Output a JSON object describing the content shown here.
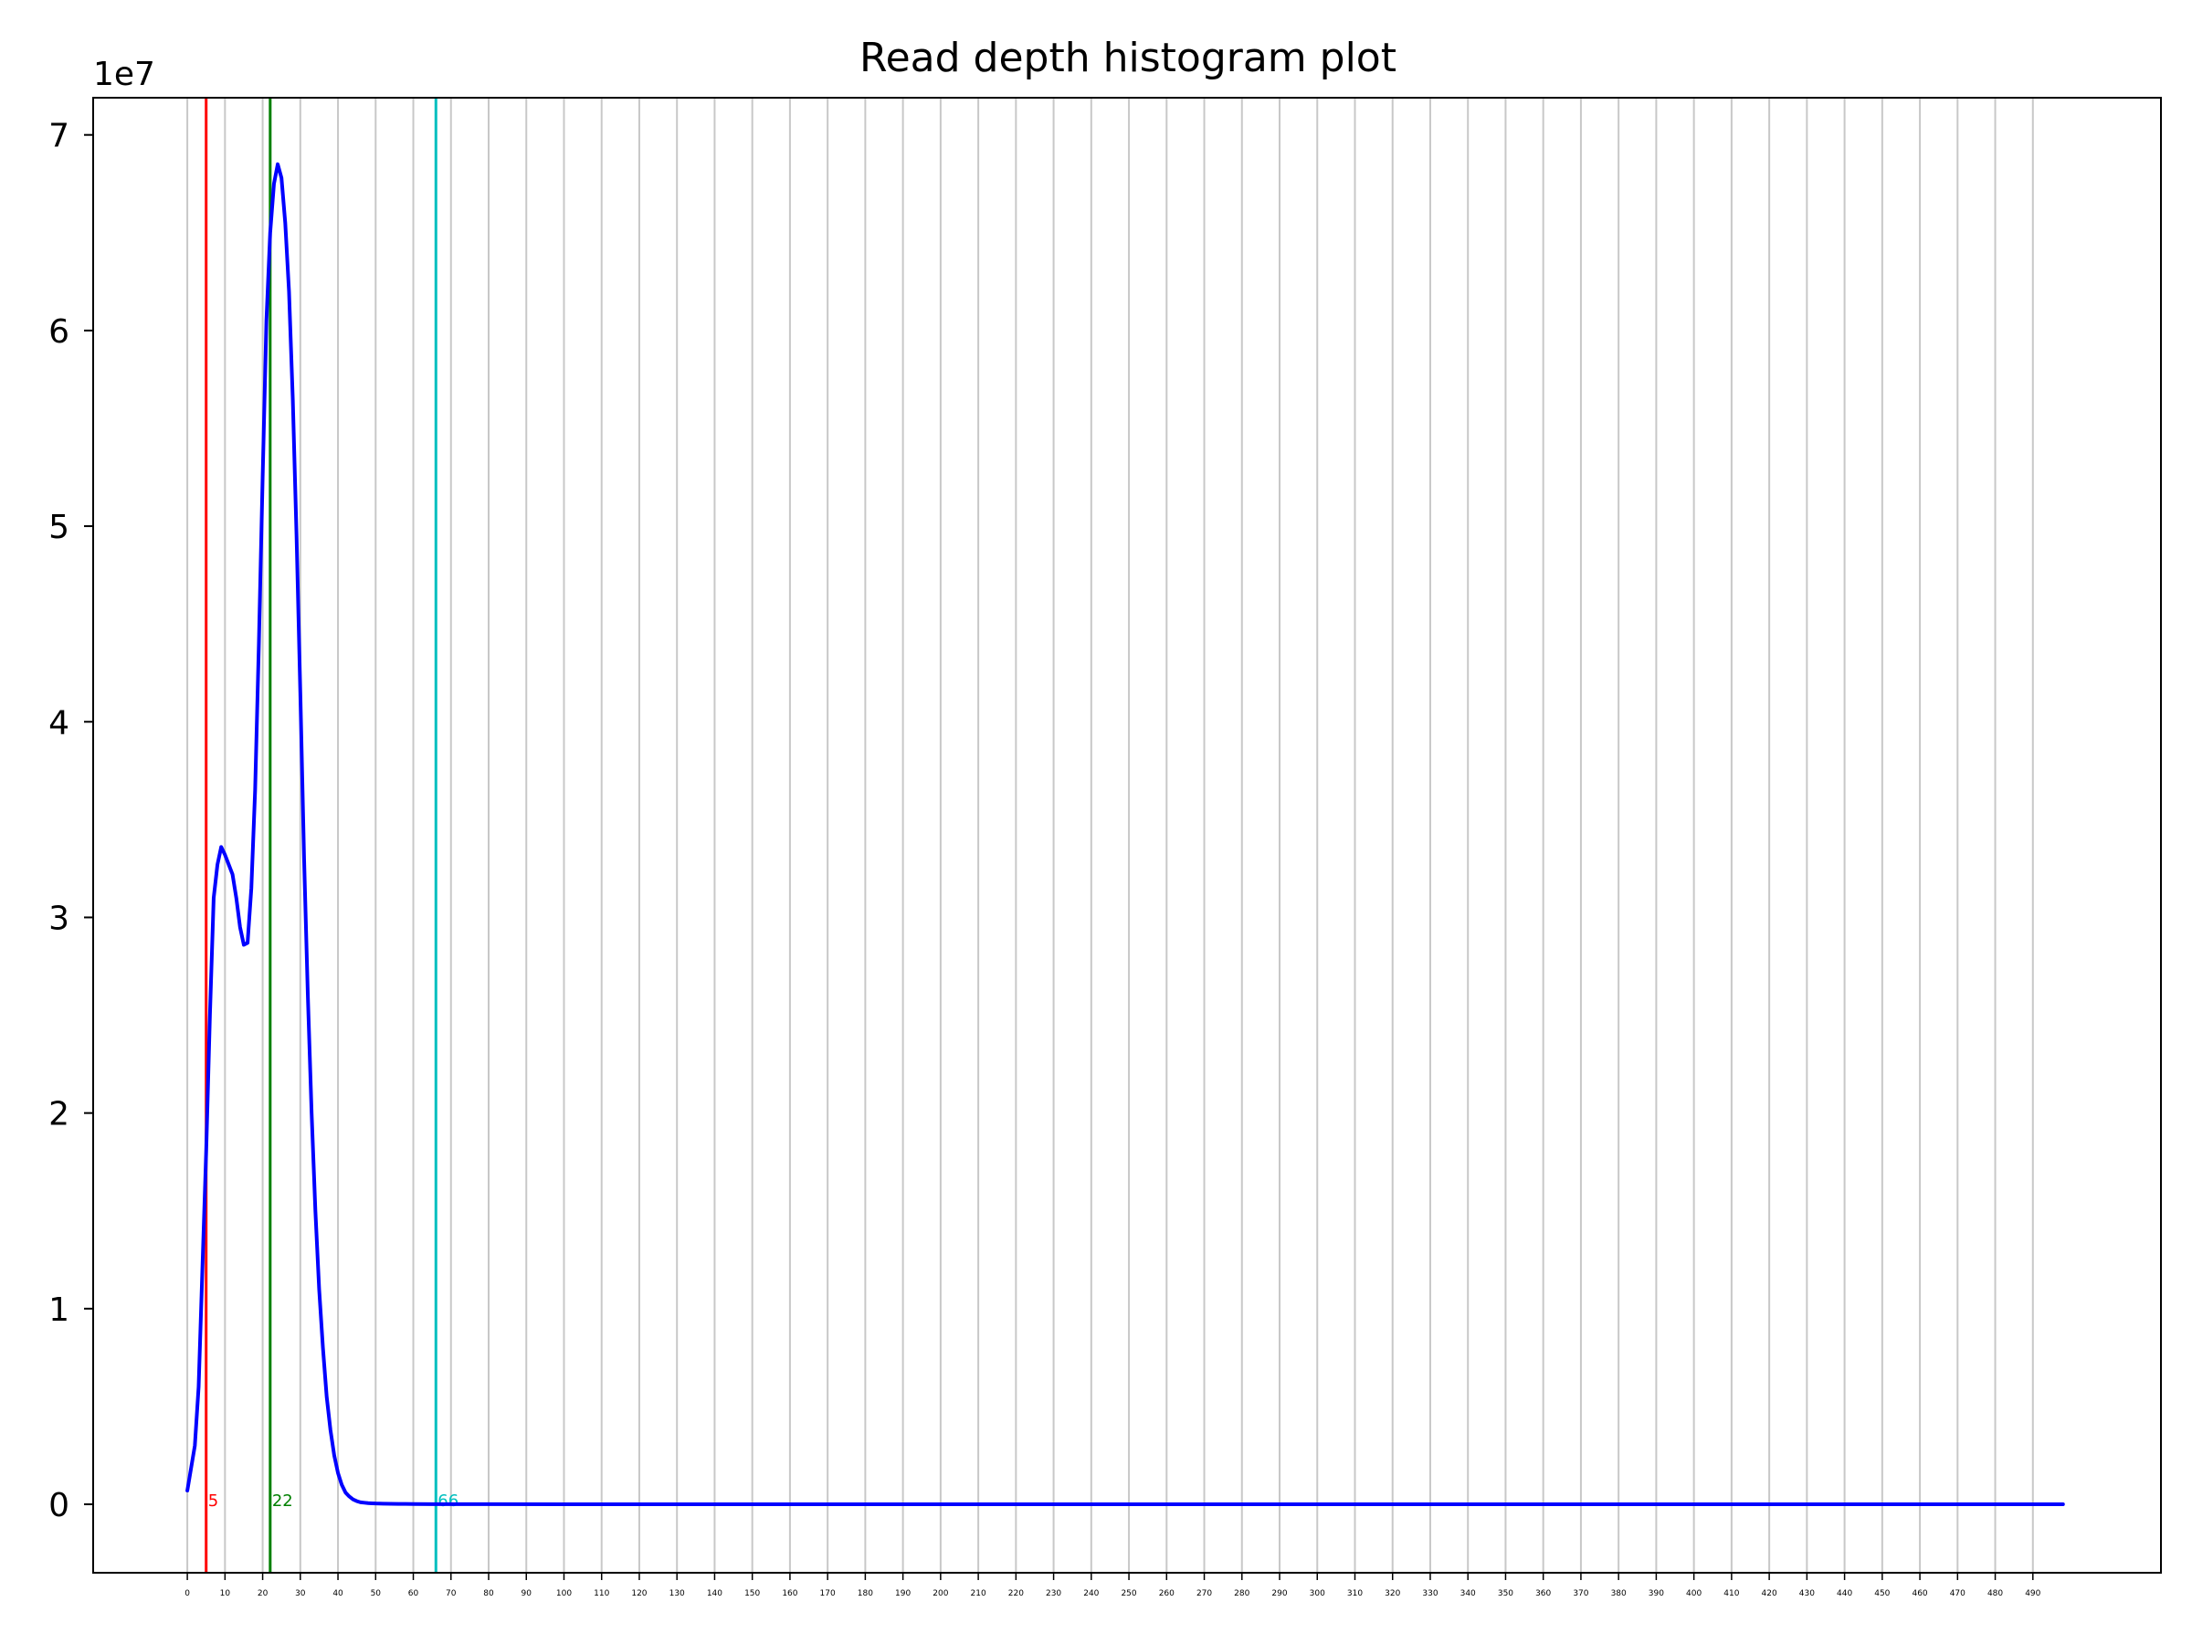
{
  "chart_data": {
    "type": "line",
    "title": "Read depth histogram plot",
    "xlabel": "",
    "ylabel": "",
    "y_offset_label": "1e7",
    "y_scale": 10000000,
    "xlim": [
      -25,
      524
    ],
    "ylim": [
      -3500000,
      71900000
    ],
    "grid": "vertical",
    "x_ticks": [
      0,
      10,
      20,
      30,
      40,
      50,
      60,
      70,
      80,
      90,
      100,
      110,
      120,
      130,
      140,
      150,
      160,
      170,
      180,
      190,
      200,
      210,
      220,
      230,
      240,
      250,
      260,
      270,
      280,
      290,
      300,
      310,
      320,
      330,
      340,
      350,
      360,
      370,
      380,
      390,
      400,
      410,
      420,
      430,
      440,
      450,
      460,
      470,
      480,
      490
    ],
    "y_ticks": [
      0,
      10000000,
      20000000,
      30000000,
      40000000,
      50000000,
      60000000,
      70000000
    ],
    "y_tick_labels": [
      "0",
      "1",
      "2",
      "3",
      "4",
      "5",
      "6",
      "7"
    ],
    "series": [
      {
        "color": "#0000ff",
        "x": [
          0,
          2,
          3,
          4,
          5,
          6,
          7,
          8,
          9,
          10,
          11,
          12,
          13,
          14,
          15,
          16,
          17,
          18,
          19,
          20,
          21,
          22,
          23,
          24,
          25,
          26,
          27,
          28,
          29,
          30,
          31,
          32,
          33,
          34,
          35,
          36,
          37,
          38,
          39,
          40,
          41,
          42,
          43,
          44,
          45,
          46,
          47,
          48,
          49,
          50,
          52,
          54,
          56,
          58,
          60,
          65,
          70,
          80,
          100,
          150,
          200,
          300,
          400,
          498
        ],
        "y": [
          700000,
          3000000,
          6000000,
          12000000,
          18000000,
          25000000,
          31000000,
          32700000,
          33600000,
          33200000,
          32700000,
          32200000,
          31000000,
          29500000,
          28600000,
          28700000,
          31500000,
          36500000,
          44000000,
          52500000,
          60500000,
          65000000,
          67500000,
          68500000,
          67800000,
          65500000,
          62000000,
          56500000,
          49500000,
          41500000,
          33000000,
          26000000,
          20000000,
          15000000,
          11000000,
          8000000,
          5500000,
          3800000,
          2500000,
          1600000,
          1000000,
          600000,
          400000,
          250000,
          160000,
          100000,
          80000,
          60000,
          50000,
          40000,
          30000,
          25000,
          20000,
          20000,
          15000,
          10000,
          10000,
          5000,
          3000,
          2000,
          1000,
          500,
          300,
          0
        ]
      }
    ],
    "vlines": [
      {
        "x": 5,
        "color": "#ff0000",
        "label": "5"
      },
      {
        "x": 22,
        "color": "#008000",
        "label": "22"
      },
      {
        "x": 66,
        "color": "#00bfbf",
        "label": "66"
      }
    ]
  }
}
